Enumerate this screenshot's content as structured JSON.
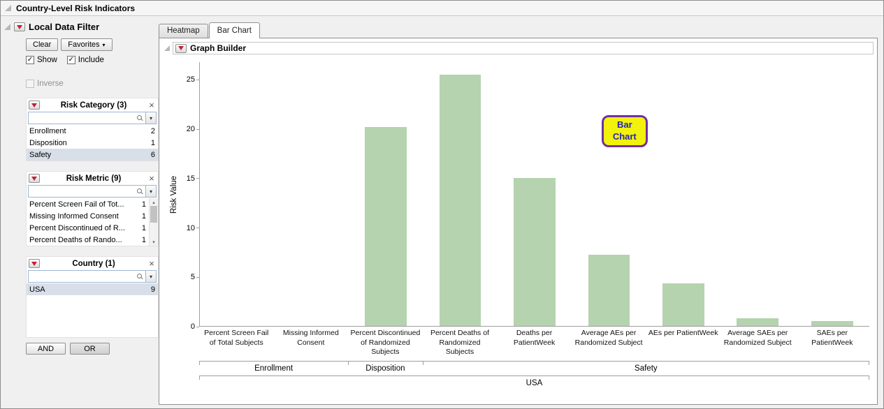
{
  "window": {
    "title": "Country-Level Risk Indicators"
  },
  "filter": {
    "title": "Local Data Filter",
    "clear_label": "Clear",
    "favorites_label": "Favorites",
    "show_label": "Show",
    "include_label": "Include",
    "inverse_label": "Inverse",
    "and_label": "AND",
    "or_label": "OR",
    "search_placeholder": "",
    "sections": [
      {
        "id": "risk-category",
        "title": "Risk Category (3)",
        "scrollbar": false,
        "items": [
          {
            "label": "Enrollment",
            "count": "2",
            "selected": false
          },
          {
            "label": "Disposition",
            "count": "1",
            "selected": false
          },
          {
            "label": "Safety",
            "count": "6",
            "selected": true
          }
        ]
      },
      {
        "id": "risk-metric",
        "title": "Risk Metric (9)",
        "scrollbar": true,
        "items": [
          {
            "label": "Percent Screen Fail of Tot...",
            "count": "1",
            "selected": false
          },
          {
            "label": "Missing Informed Consent",
            "count": "1",
            "selected": false
          },
          {
            "label": "Percent Discontinued of R...",
            "count": "1",
            "selected": false
          },
          {
            "label": "Percent Deaths of Rando...",
            "count": "1",
            "selected": false
          }
        ]
      },
      {
        "id": "country",
        "title": "Country (1)",
        "scrollbar": false,
        "tall": true,
        "items": [
          {
            "label": "USA",
            "count": "9",
            "selected": true
          }
        ]
      }
    ]
  },
  "tabs": [
    {
      "label": "Heatmap",
      "selected": false
    },
    {
      "label": "Bar Chart",
      "selected": true
    }
  ],
  "graph": {
    "title": "Graph Builder"
  },
  "colors": {
    "selection": "#d8dfe9",
    "red_triangle": "#c32032"
  },
  "chart_data": {
    "type": "bar",
    "title": "",
    "xlabel": "",
    "ylabel": "Risk Value",
    "ylim": [
      0,
      26.8
    ],
    "yticks": [
      0,
      5,
      10,
      15,
      20,
      25
    ],
    "grid": false,
    "legend": "none",
    "categories": [
      "Percent Screen Fail of Total Subjects",
      "Missing Informed Consent",
      "Percent Discontinued of Randomized Subjects",
      "Percent Deaths of Randomized Subjects",
      "Deaths per PatientWeek",
      "Average AEs per Randomized Subject",
      "AEs per PatientWeek",
      "Average SAEs per Randomized Subject",
      "SAEs per PatientWeek"
    ],
    "values": [
      0,
      0,
      20.2,
      25.5,
      15.0,
      7.2,
      4.3,
      0.8,
      0.5
    ],
    "groups": [
      {
        "label": "Enrollment",
        "span": 2
      },
      {
        "label": "Disposition",
        "span": 1
      },
      {
        "label": "Safety",
        "span": 6
      }
    ],
    "outer_group_label": "USA",
    "bar_color": "#b4d3ae",
    "annotation": {
      "text": "Bar Chart",
      "fill": "#f2f20c",
      "border": "#7030a0",
      "text_color": "#2626b0"
    }
  }
}
